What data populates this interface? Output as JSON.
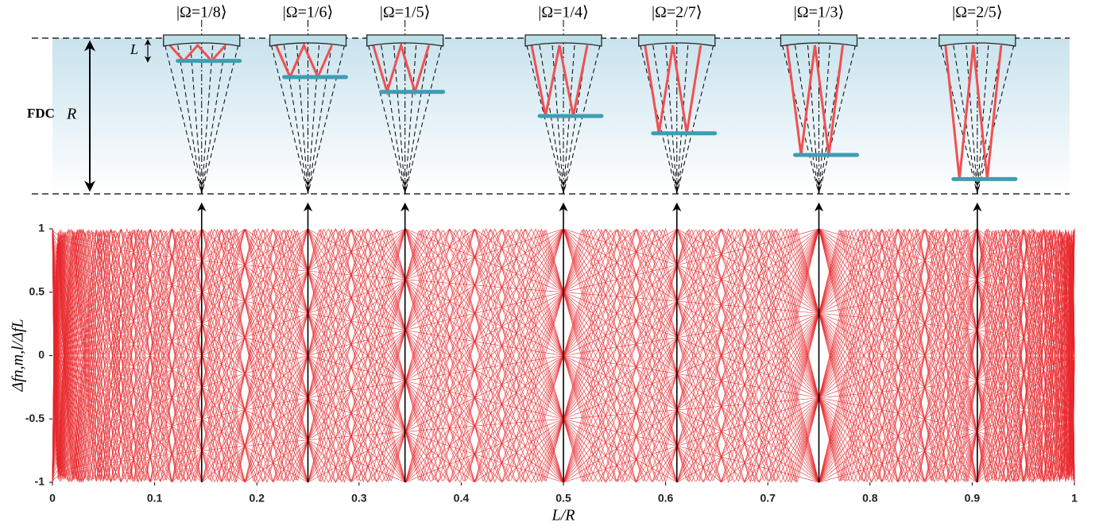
{
  "chart_data": {
    "type": "line",
    "xlabel": "L/R",
    "ylabel": "Δfn,m,l/ΔfL",
    "xlim": [
      0,
      1
    ],
    "ylim": [
      -1,
      1
    ],
    "xticks": [
      0,
      0.1,
      0.2,
      0.3,
      0.4,
      0.5,
      0.6,
      0.7,
      0.8,
      0.9,
      1
    ],
    "yticks": [
      1,
      0.5,
      0,
      -0.5,
      -1
    ],
    "color": "#e8262a",
    "markers": [
      {
        "label": "|Ω=1/8⟩",
        "x": 0.146
      },
      {
        "label": "|Ω=1/6⟩",
        "x": 0.25
      },
      {
        "label": "|Ω=1/5⟩",
        "x": 0.345
      },
      {
        "label": "|Ω=1/4⟩",
        "x": 0.5
      },
      {
        "label": "|Ω=2/7⟩",
        "x": 0.611
      },
      {
        "label": "|Ω=1/3⟩",
        "x": 0.75
      },
      {
        "label": "|Ω=2/5⟩",
        "x": 0.905
      }
    ]
  },
  "diagram": {
    "title": "FDC",
    "r_label": "R",
    "l_label": "L"
  }
}
